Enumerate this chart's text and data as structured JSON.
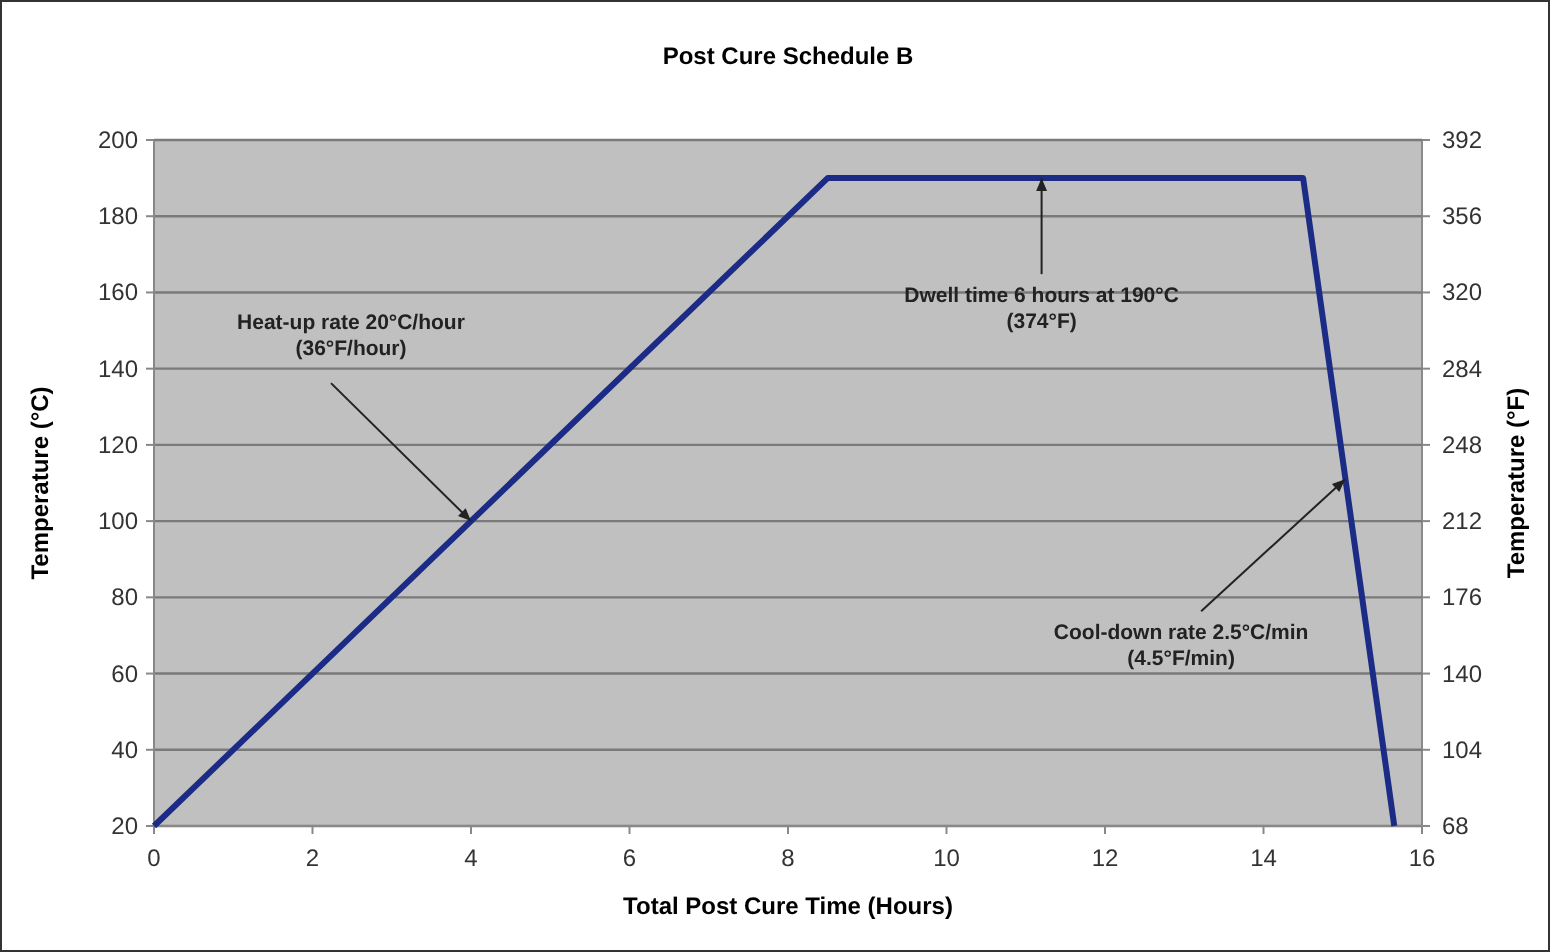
{
  "chart_data": {
    "type": "line",
    "title": "Post Cure Schedule B",
    "xlabel": "Total Post Cure Time (Hours)",
    "ylabel": "Temperature (°C)",
    "y2label": "Temperature (°F)",
    "x": [
      0,
      8.5,
      14.5,
      15.65
    ],
    "series": [
      {
        "color": "#1c2c86",
        "values": [
          20,
          190,
          190,
          20
        ]
      }
    ],
    "xlim": [
      0,
      16
    ],
    "xticks": [
      0,
      2,
      4,
      6,
      8,
      10,
      12,
      14,
      16
    ],
    "ylim": [
      20,
      200
    ],
    "yticks": [
      20,
      40,
      60,
      80,
      100,
      120,
      140,
      160,
      180,
      200
    ],
    "y2lim": [
      68,
      392
    ],
    "y2ticks": [
      68,
      104,
      140,
      176,
      212,
      248,
      284,
      320,
      356,
      392
    ],
    "grid": "y",
    "marker": "none",
    "line_style": "solid",
    "annotations": [
      {
        "text": "Heat-up rate 20°C/hour\n(36°F/hour)",
        "x": 4,
        "y": 100
      },
      {
        "text": "Dwell time 6 hours at 190°C\n(374°F)",
        "x": 11.2,
        "y": 190
      },
      {
        "text": "Cool-down rate 2.5°C/min\n(4.5°F/min)",
        "x": 15.03,
        "y": 111
      }
    ]
  }
}
